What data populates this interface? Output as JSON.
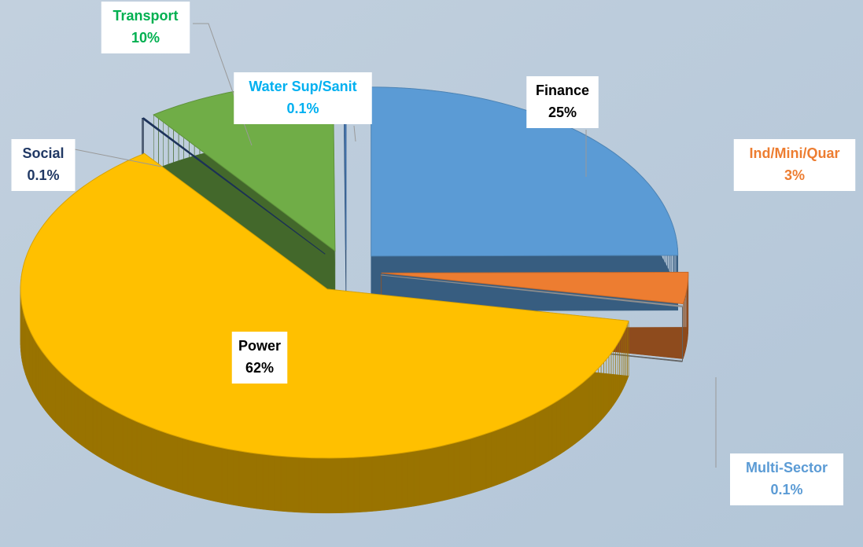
{
  "chart_data": {
    "type": "pie",
    "categories": [
      "Finance",
      "Ind/Mini/Quar",
      "Multi-Sector",
      "Power",
      "Social",
      "Transport",
      "Water Sup/Sanit"
    ],
    "values": [
      25,
      3,
      0.1,
      62,
      0.1,
      10,
      0.1
    ],
    "value_labels": [
      "25%",
      "3%",
      "0.1%",
      "62%",
      "0.1%",
      "10%",
      "0.1%"
    ],
    "colors": [
      "#5b9bd5",
      "#ed7d31",
      "#a5a5a5",
      "#ffc000",
      "#203864",
      "#70ad47",
      "#4a7ebb"
    ],
    "label_colors": [
      "#000000",
      "#ed7d31",
      "#5b9bd5",
      "#000000",
      "#203864",
      "#00b050",
      "#00b0f0"
    ],
    "exploded": true,
    "three_d": true
  }
}
